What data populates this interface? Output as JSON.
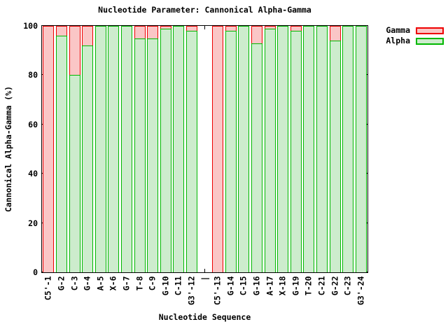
{
  "chart_data": {
    "type": "bar",
    "overlay": true,
    "title": "Nucleotide Parameter: Cannonical Alpha-Gamma",
    "xlabel": "Nucleotide Sequence",
    "ylabel": "Cannonical Alpha-Gamma (%)",
    "ylim": [
      0,
      100
    ],
    "yticks": [
      0,
      20,
      40,
      60,
      80,
      100
    ],
    "grid": false,
    "legend_position": "outside-top-right",
    "categories": [
      "C5'-1",
      "G-2",
      "C-3",
      "G-4",
      "A-5",
      "X-6",
      "G-7",
      "T-8",
      "C-9",
      "G-10",
      "C-11",
      "G3'-12",
      "|",
      "C5'-13",
      "G-14",
      "C-15",
      "G-16",
      "A-17",
      "X-18",
      "G-19",
      "T-20",
      "C-21",
      "G-22",
      "C-23",
      "G3'-24"
    ],
    "series": [
      {
        "name": "Gamma",
        "border_color": "#ee0000",
        "fill_color": "#fac6c6",
        "values": [
          100,
          100,
          100,
          100,
          100,
          100,
          100,
          100,
          100,
          100,
          100,
          100,
          null,
          100,
          100,
          100,
          100,
          100,
          100,
          100,
          100,
          100,
          100,
          100,
          100
        ]
      },
      {
        "name": "Alpha",
        "border_color": "#00b800",
        "fill_color": "#cdeccd",
        "values": [
          0,
          96,
          80,
          92,
          100,
          100,
          100,
          95,
          95,
          99,
          100,
          98,
          null,
          0,
          98,
          100,
          93,
          99,
          100,
          98,
          100,
          100,
          94,
          100,
          100
        ]
      }
    ]
  }
}
